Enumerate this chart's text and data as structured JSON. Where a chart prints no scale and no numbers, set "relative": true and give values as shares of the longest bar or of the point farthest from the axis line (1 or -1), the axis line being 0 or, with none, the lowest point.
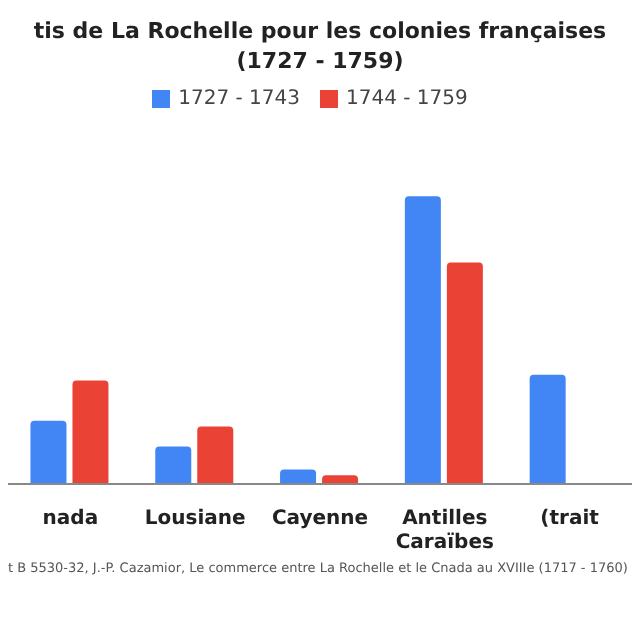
{
  "chart_data": {
    "type": "bar",
    "title": "tis de La Rochelle pour les colonies françaises\n(1727 - 1759)",
    "categories": [
      "nada",
      "Lousiane",
      "Cayenne",
      "Antilles Caraïbes",
      "(trait"
    ],
    "relative": true,
    "legend": "top",
    "series": [
      {
        "name": "1727 - 1743",
        "color": "#4285f4",
        "values": [
          0.22,
          0.13,
          0.05,
          1,
          0.38
        ]
      },
      {
        "name": "1744 - 1759",
        "color": "#ea4335",
        "values": [
          0.36,
          0.2,
          0.03,
          0.77,
          null
        ]
      }
    ],
    "annotations": [
      "t B 5530-32, J.-P. Cazamior, Le commerce entre La Rochelle et le Cnada au XVIIIe (1717 - 1760)"
    ]
  }
}
